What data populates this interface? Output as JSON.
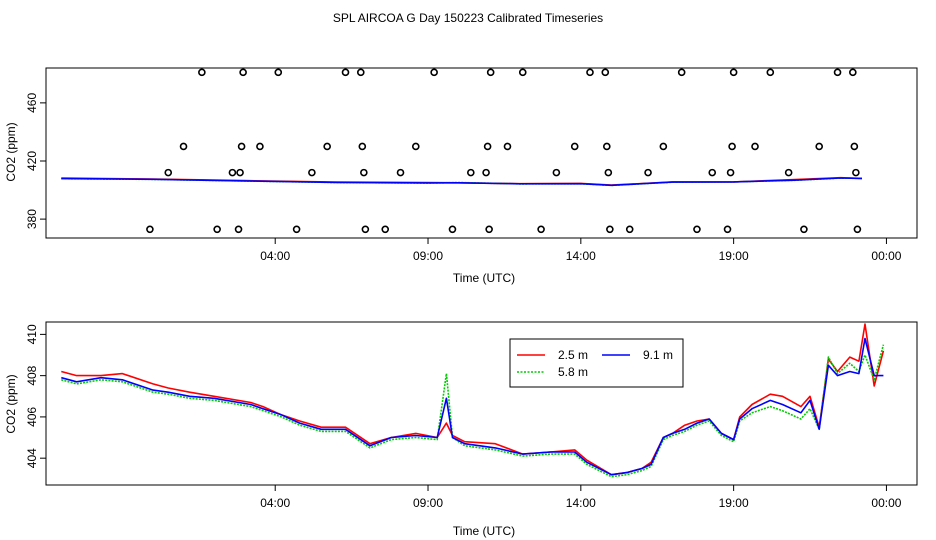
{
  "figure": {
    "title": "SPL AIRCOA G  Day 150223  Calibrated Timeseries"
  },
  "chart_data": [
    {
      "type": "line",
      "panel": "top",
      "xlabel": "Time (UTC)",
      "ylabel": "CO2 (ppm)",
      "xlim": [
        -3.5,
        25
      ],
      "ylim": [
        367,
        484
      ],
      "x_ticks": [
        {
          "v": 4,
          "label": "04:00"
        },
        {
          "v": 9,
          "label": "09:00"
        },
        {
          "v": 14,
          "label": "14:00"
        },
        {
          "v": 19,
          "label": "19:00"
        },
        {
          "v": 24,
          "label": "00:00"
        }
      ],
      "y_ticks": [
        {
          "v": 380,
          "label": "380"
        },
        {
          "v": 420,
          "label": "420"
        },
        {
          "v": 460,
          "label": "460"
        }
      ],
      "cal_points": [
        [
          -0.1,
          373
        ],
        [
          0.5,
          412
        ],
        [
          1,
          430
        ],
        [
          1.6,
          481
        ],
        [
          2.1,
          373
        ],
        [
          2.6,
          412
        ],
        [
          2.8,
          373
        ],
        [
          2.85,
          412
        ],
        [
          2.9,
          430
        ],
        [
          2.95,
          481
        ],
        [
          3.5,
          430
        ],
        [
          4.1,
          481
        ],
        [
          4.7,
          373
        ],
        [
          5.2,
          412
        ],
        [
          5.7,
          430
        ],
        [
          6.3,
          481
        ],
        [
          6.8,
          481
        ],
        [
          6.85,
          430
        ],
        [
          6.9,
          412
        ],
        [
          6.95,
          373
        ],
        [
          7.6,
          373
        ],
        [
          8.1,
          412
        ],
        [
          8.6,
          430
        ],
        [
          9.2,
          481
        ],
        [
          9.8,
          373
        ],
        [
          10.4,
          412
        ],
        [
          10.9,
          412
        ],
        [
          10.95,
          430
        ],
        [
          11,
          373
        ],
        [
          11.05,
          481
        ],
        [
          11.6,
          430
        ],
        [
          12.1,
          481
        ],
        [
          12.7,
          373
        ],
        [
          13.2,
          412
        ],
        [
          13.8,
          430
        ],
        [
          14.3,
          481
        ],
        [
          14.8,
          481
        ],
        [
          14.85,
          430
        ],
        [
          14.9,
          412
        ],
        [
          14.95,
          373
        ],
        [
          15.6,
          373
        ],
        [
          16.2,
          412
        ],
        [
          16.7,
          430
        ],
        [
          17.3,
          481
        ],
        [
          17.8,
          373
        ],
        [
          18.3,
          412
        ],
        [
          18.8,
          373
        ],
        [
          18.9,
          412
        ],
        [
          18.95,
          430
        ],
        [
          19,
          481
        ],
        [
          19.7,
          430
        ],
        [
          20.2,
          481
        ],
        [
          20.8,
          412
        ],
        [
          21.3,
          373
        ],
        [
          21.8,
          430
        ],
        [
          22.4,
          481
        ],
        [
          22.9,
          481
        ],
        [
          22.95,
          430
        ],
        [
          23,
          412
        ],
        [
          23.05,
          373
        ]
      ],
      "series": [
        {
          "name": "2.5 m",
          "color": "#ff0000",
          "x": [
            -3,
            0,
            3,
            6,
            9,
            10,
            12,
            14,
            15,
            17,
            19,
            21,
            22.5,
            23.2
          ],
          "values": [
            408.2,
            407.6,
            406.5,
            405.5,
            405.1,
            405,
            404.4,
            404.6,
            403.4,
            405.6,
            405.6,
            407.2,
            408.5,
            408
          ]
        },
        {
          "name": "5.8 m",
          "color": "#00cc00",
          "x": [
            -3,
            0,
            3,
            6,
            9,
            10,
            12,
            14,
            15,
            17,
            19,
            21,
            22.5,
            23.2
          ],
          "values": [
            407.8,
            407.3,
            406.2,
            405.2,
            404.8,
            405.2,
            404.2,
            404.3,
            403.2,
            405.4,
            405.6,
            406.7,
            408.2,
            408
          ]
        },
        {
          "name": "9.1 m",
          "color": "#0000ff",
          "x": [
            -3,
            0,
            3,
            6,
            9,
            10,
            12,
            14,
            15,
            17,
            19,
            21,
            22.5,
            23.2
          ],
          "values": [
            407.9,
            407.4,
            406.3,
            405.3,
            404.9,
            405,
            404.3,
            404.4,
            403.3,
            405.5,
            405.6,
            406.8,
            408.3,
            408
          ]
        }
      ]
    },
    {
      "type": "line",
      "panel": "bottom",
      "xlabel": "Time (UTC)",
      "ylabel": "CO2 (ppm)",
      "xlim": [
        -3.5,
        25
      ],
      "ylim": [
        402.7,
        410.6
      ],
      "x_ticks": [
        {
          "v": 4,
          "label": "04:00"
        },
        {
          "v": 9,
          "label": "09:00"
        },
        {
          "v": 14,
          "label": "14:00"
        },
        {
          "v": 19,
          "label": "19:00"
        },
        {
          "v": 24,
          "label": "00:00"
        }
      ],
      "y_ticks": [
        {
          "v": 404,
          "label": "404"
        },
        {
          "v": 406,
          "label": "406"
        },
        {
          "v": 408,
          "label": "408"
        },
        {
          "v": 410,
          "label": "410"
        }
      ],
      "legend": "top-center",
      "series": [
        {
          "name": "2.5 m",
          "color": "#ff0000",
          "x": [
            -3,
            -2.5,
            -1.7,
            -1,
            0,
            0.5,
            1.2,
            2,
            3.2,
            3.6,
            4.2,
            4.8,
            5.5,
            6.3,
            7.1,
            7.8,
            8.6,
            9.3,
            9.6,
            9.8,
            10.2,
            11.2,
            12.1,
            13,
            13.8,
            14.2,
            15,
            15.5,
            16,
            16.3,
            16.7,
            17,
            17.4,
            17.8,
            18.2,
            18.6,
            19,
            19.2,
            19.6,
            20.2,
            20.6,
            21.2,
            21.5,
            21.8,
            22.1,
            22.4,
            22.8,
            23.1,
            23.3,
            23.6,
            23.9
          ],
          "values": [
            408.2,
            408,
            408,
            408.1,
            407.6,
            407.4,
            407.2,
            407,
            406.7,
            406.5,
            406.1,
            405.8,
            405.5,
            405.5,
            404.7,
            405,
            405.2,
            405,
            405.7,
            405.1,
            404.8,
            404.7,
            404.2,
            404.3,
            404.4,
            403.9,
            403.2,
            403.3,
            403.5,
            403.8,
            405,
            405.2,
            405.6,
            405.8,
            405.9,
            405.2,
            404.9,
            406,
            406.6,
            407.1,
            407,
            406.5,
            407,
            405.5,
            408.8,
            408.2,
            408.9,
            408.7,
            410.5,
            407.5,
            409.2
          ]
        },
        {
          "name": "5.8 m",
          "color": "#00cc00",
          "x": [
            -3,
            -2.5,
            -1.7,
            -1,
            0,
            0.5,
            1.2,
            2,
            3.2,
            3.6,
            4.2,
            4.8,
            5.5,
            6.3,
            7.1,
            7.8,
            8.6,
            9.3,
            9.6,
            9.8,
            10.2,
            11.2,
            12.1,
            13,
            13.8,
            14.2,
            15,
            15.5,
            16,
            16.3,
            16.7,
            17,
            17.4,
            17.8,
            18.2,
            18.6,
            19,
            19.2,
            19.6,
            20.2,
            20.6,
            21.2,
            21.5,
            21.8,
            22.1,
            22.4,
            22.8,
            23.1,
            23.3,
            23.6,
            23.9
          ],
          "values": [
            407.8,
            407.6,
            407.8,
            407.7,
            407.2,
            407.1,
            406.9,
            406.8,
            406.5,
            406.3,
            406,
            405.6,
            405.3,
            405.3,
            404.5,
            404.9,
            405,
            404.9,
            408.1,
            405,
            404.6,
            404.4,
            404.1,
            404.2,
            404.2,
            403.7,
            403.1,
            403.2,
            403.4,
            403.6,
            404.9,
            405.1,
            405.3,
            405.6,
            405.8,
            405.1,
            404.8,
            405.8,
            406.2,
            406.5,
            406.3,
            405.9,
            406.4,
            405.4,
            408.9,
            408.1,
            408.6,
            408.2,
            409,
            407.8,
            409.5
          ]
        },
        {
          "name": "9.1 m",
          "color": "#0000ff",
          "x": [
            -3,
            -2.5,
            -1.7,
            -1,
            0,
            0.5,
            1.2,
            2,
            3.2,
            3.6,
            4.2,
            4.8,
            5.5,
            6.3,
            7.1,
            7.8,
            8.6,
            9.3,
            9.6,
            9.8,
            10.2,
            11.2,
            12.1,
            13,
            13.8,
            14.2,
            15,
            15.5,
            16,
            16.3,
            16.7,
            17,
            17.4,
            17.8,
            18.2,
            18.6,
            19,
            19.2,
            19.6,
            20.2,
            20.6,
            21.2,
            21.5,
            21.8,
            22.1,
            22.4,
            22.8,
            23.1,
            23.3,
            23.6,
            23.9
          ],
          "values": [
            407.9,
            407.7,
            407.9,
            407.8,
            407.3,
            407.2,
            407,
            406.9,
            406.6,
            406.4,
            406.1,
            405.7,
            405.4,
            405.4,
            404.6,
            405,
            405.1,
            405,
            406.9,
            405,
            404.7,
            404.5,
            404.2,
            404.3,
            404.3,
            403.8,
            403.2,
            403.3,
            403.5,
            403.7,
            405,
            405.2,
            405.4,
            405.7,
            405.9,
            405.2,
            404.9,
            405.9,
            406.4,
            406.8,
            406.6,
            406.2,
            406.8,
            405.4,
            408.5,
            408,
            408.2,
            408.1,
            409.8,
            408,
            408
          ]
        }
      ]
    }
  ]
}
